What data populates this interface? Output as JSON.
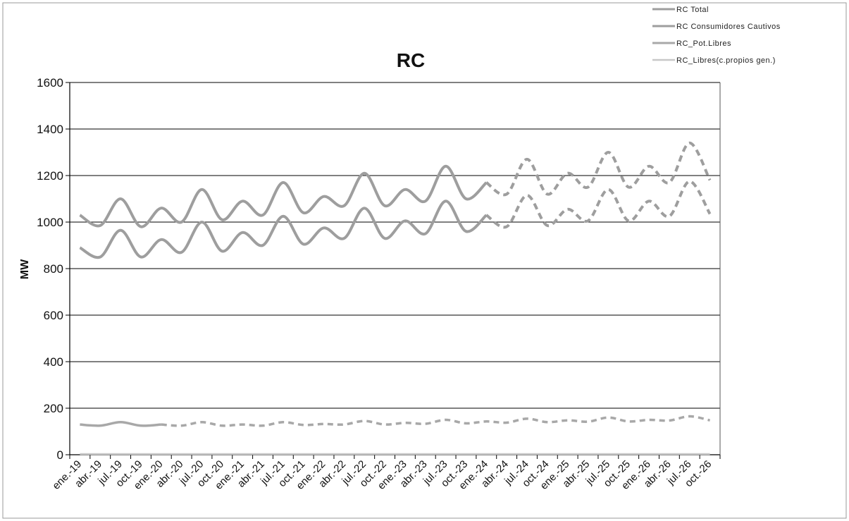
{
  "chart_data": {
    "type": "line",
    "title": "RC",
    "xlabel": "",
    "ylabel": "MW",
    "ylim": [
      0,
      1600
    ],
    "yticks": [
      0,
      200,
      400,
      600,
      800,
      1000,
      1200,
      1400,
      1600
    ],
    "grid": true,
    "legend_position": "top-right",
    "categories": [
      "ene.-19",
      "abr.-19",
      "jul.-19",
      "oct.-19",
      "ene.-20",
      "abr.-20",
      "jul.-20",
      "oct.-20",
      "ene.-21",
      "abr.-21",
      "jul.-21",
      "oct.-21",
      "ene.-22",
      "abr.-22",
      "jul.-22",
      "oct.-22",
      "ene.-23",
      "abr.-23",
      "jul.-23",
      "oct.-23",
      "ene.-24",
      "abr.-24",
      "jul.-24",
      "oct.-24",
      "ene.-25",
      "abr.-25",
      "jul.-25",
      "oct.-25",
      "ene.-26",
      "abr.-26",
      "jul.-26",
      "oct.-26"
    ],
    "series": [
      {
        "name": "RC Total",
        "color": "#9e9e9e",
        "values": [
          1030,
          985,
          1100,
          980,
          1060,
          1000,
          1140,
          1010,
          1090,
          1030,
          1170,
          1040,
          1110,
          1070,
          1210,
          1070,
          1140,
          1090,
          1240,
          1100,
          1170,
          1120,
          1270,
          1120,
          1210,
          1150,
          1300,
          1150,
          1240,
          1170,
          1340,
          1180
        ]
      },
      {
        "name": "RC Consumidores Cautivos",
        "color": "#9e9e9e",
        "values": [
          890,
          850,
          965,
          850,
          925,
          870,
          1000,
          875,
          955,
          900,
          1025,
          905,
          975,
          930,
          1060,
          930,
          1005,
          950,
          1090,
          960,
          1030,
          980,
          1115,
          985,
          1055,
          1005,
          1140,
          1005,
          1090,
          1025,
          1175,
          1035
        ]
      },
      {
        "name": "RC_Pot.Libres",
        "color": "#a8a8a8",
        "values": [
          130,
          125,
          140,
          125,
          130,
          125,
          140,
          125,
          130,
          125,
          140,
          128,
          132,
          130,
          145,
          130,
          137,
          133,
          150,
          135,
          143,
          138,
          155,
          140,
          148,
          142,
          160,
          143,
          150,
          147,
          165,
          148
        ]
      },
      {
        "name": "RC_Libres(c.propios gen.)",
        "color": "#c8c8c8",
        "values": [
          3,
          3,
          3,
          3,
          3,
          3,
          3,
          3,
          3,
          3,
          3,
          3,
          3,
          3,
          3,
          3,
          3,
          3,
          3,
          3,
          3,
          3,
          3,
          3,
          3,
          3,
          3,
          3,
          3,
          3,
          3,
          3
        ]
      }
    ]
  }
}
